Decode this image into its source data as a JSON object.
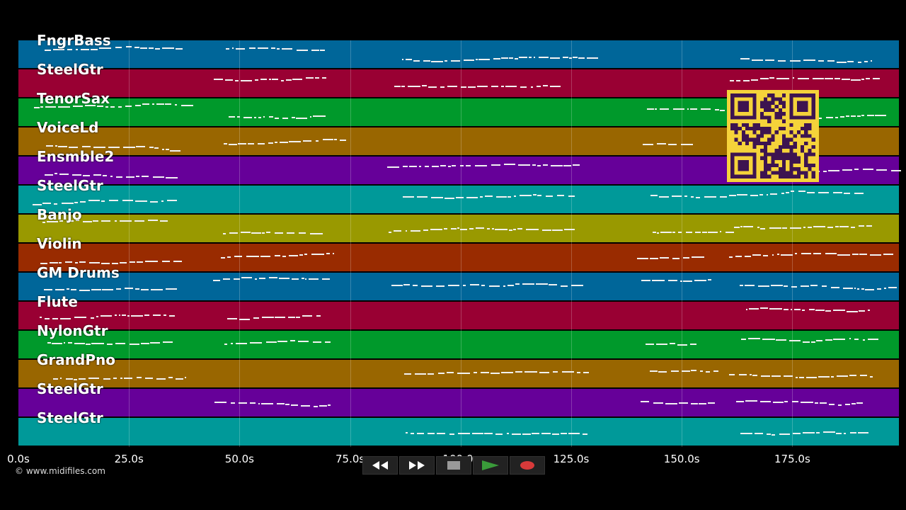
{
  "tracks": [
    {
      "label": "FngrBass",
      "color": "#006699"
    },
    {
      "label": "SteelGtr",
      "color": "#990033"
    },
    {
      "label": "TenorSax",
      "color": "#00992b"
    },
    {
      "label": "VoiceLd",
      "color": "#996600"
    },
    {
      "label": "Ensmble2",
      "color": "#660099"
    },
    {
      "label": "SteelGtr",
      "color": "#009999"
    },
    {
      "label": "Banjo",
      "color": "#999900"
    },
    {
      "label": "Violin",
      "color": "#992b00"
    },
    {
      "label": "GM Drums",
      "color": "#006699"
    },
    {
      "label": "Flute",
      "color": "#990033"
    },
    {
      "label": "NylonGtr",
      "color": "#00992b"
    },
    {
      "label": "GrandPno",
      "color": "#996600"
    },
    {
      "label": "SteelGtr",
      "color": "#660099"
    },
    {
      "label": "SteelGtr",
      "color": "#009999"
    }
  ],
  "time_axis": {
    "ticks": [
      "0.0s",
      "25.0s",
      "50.0s",
      "75.0s",
      "100.0s",
      "125.0s",
      "150.0s",
      "175.0s"
    ]
  },
  "copyright": "© www.midifiles.com",
  "controls": {
    "rewind_icon": "rewind-icon",
    "fast_forward_icon": "fast-forward-icon",
    "stop_icon": "stop-icon",
    "play_icon": "play-icon",
    "record_icon": "record-icon"
  },
  "colors": {
    "background": "#000000",
    "qr_yellow": "#f5d33a",
    "qr_dark": "#3d1450",
    "play_green": "#3a9b3a",
    "record_red": "#d83a3a"
  }
}
